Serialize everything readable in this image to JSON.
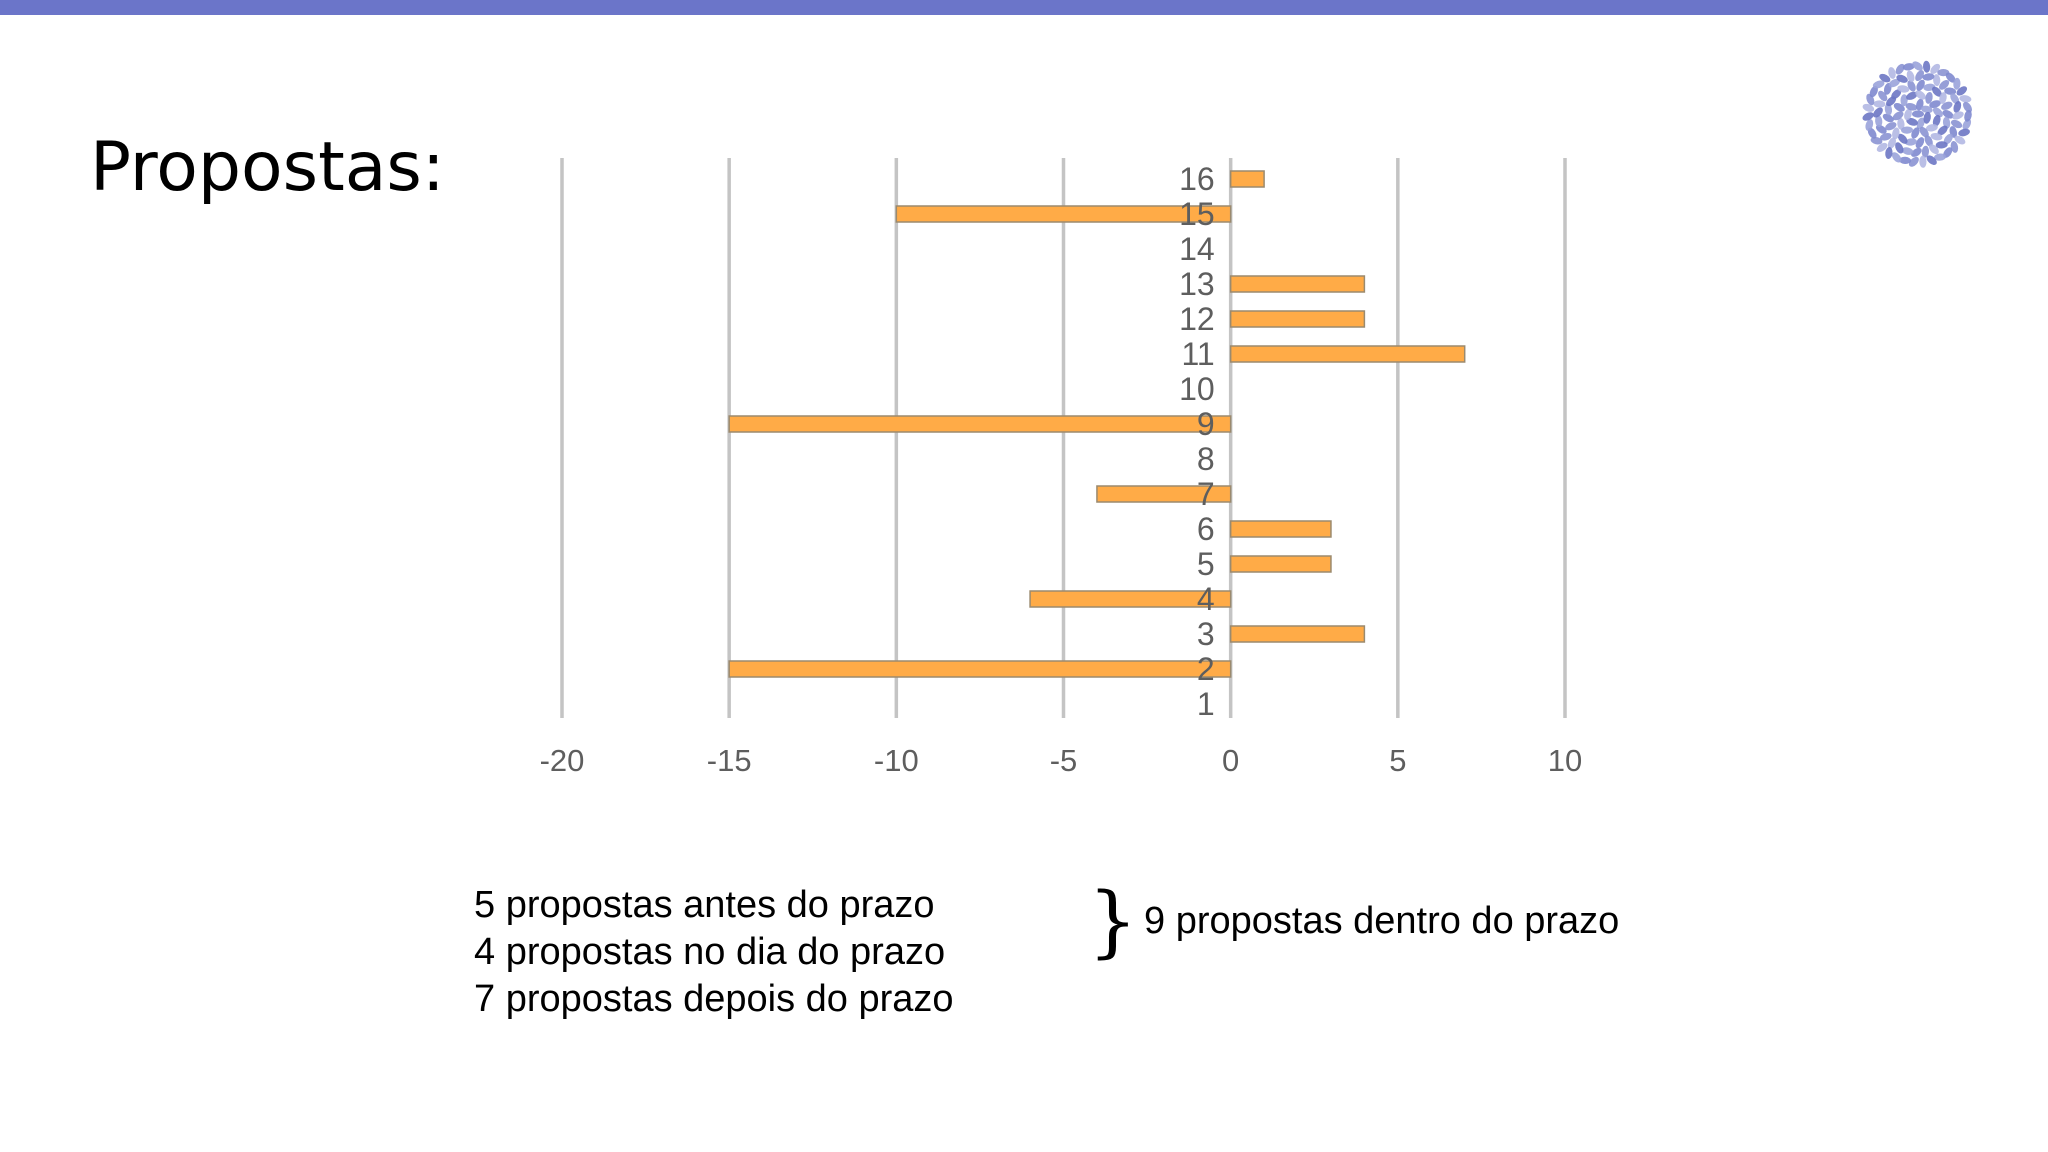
{
  "slide": {
    "title": "Propostas:",
    "accent_color": "#6b75c9",
    "logo_icon": "blue-flower-cluster-logo"
  },
  "chart_data": {
    "type": "bar",
    "orientation": "horizontal",
    "categories": [
      "1",
      "2",
      "3",
      "4",
      "5",
      "6",
      "7",
      "8",
      "9",
      "10",
      "11",
      "12",
      "13",
      "14",
      "15",
      "16"
    ],
    "values": [
      0,
      -15,
      4,
      -6,
      3,
      3,
      -4,
      0,
      -15,
      0,
      7,
      4,
      4,
      0,
      -10,
      1
    ],
    "xlim": [
      -20,
      10
    ],
    "xticks": [
      -20,
      -15,
      -10,
      -5,
      0,
      5,
      10
    ],
    "grid": "vertical",
    "bar_color": "#ffab47",
    "legend": "none"
  },
  "notes": {
    "lines": [
      "5 propostas antes do prazo",
      "4 propostas no dia do prazo",
      "7 propostas depois do prazo"
    ],
    "brace": "}",
    "summary": "9 propostas dentro do prazo"
  }
}
